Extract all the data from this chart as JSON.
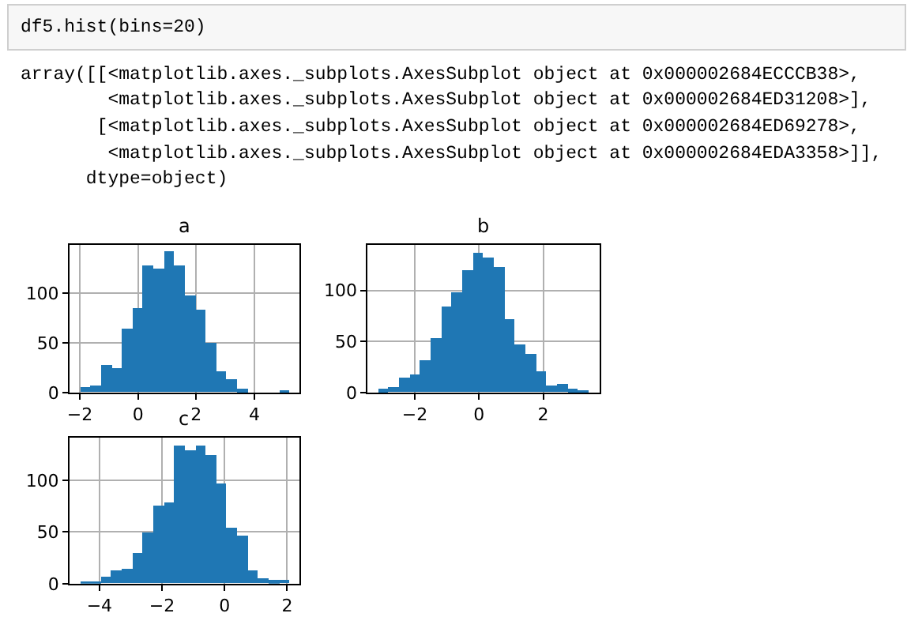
{
  "chart_data": [
    {
      "type": "histogram",
      "title": "a",
      "annotations": [
        "df5.hist(bins=20)",
        "array([[<matplotlib.axes._subplots.AxesSubplot object at 0x000002684ECCCB38>,",
        "        <matplotlib.axes._subplots.AxesSubplot object at 0x000002684ED31208>],",
        "       [<matplotlib.axes._subplots.AxesSubplot object at 0x000002684ED69278>,",
        "        <matplotlib.axes._subplots.AxesSubplot object at 0x000002684EDA3358>]],",
        "      dtype=object)"
      ],
      "bins": [
        -2.0,
        -1.64,
        -1.28,
        -0.92,
        -0.56,
        -0.2,
        0.16,
        0.52,
        0.88,
        1.24,
        1.6,
        1.96,
        2.32,
        2.68,
        3.04,
        3.4,
        3.76,
        4.12,
        4.48,
        4.84,
        5.2
      ],
      "values": [
        5,
        7,
        27,
        25,
        64,
        85,
        127,
        125,
        141,
        127,
        97,
        83,
        49,
        21,
        13,
        3,
        0,
        0,
        0,
        2
      ],
      "color": "#1f77b4",
      "xlim": [
        -2.36,
        5.56
      ],
      "ylim": [
        0,
        148
      ],
      "xticks": [
        -2,
        0,
        2,
        4
      ],
      "yticks": [
        0,
        50,
        100
      ],
      "grid": true
    },
    {
      "type": "histogram",
      "title": "b",
      "bins": [
        -3.14,
        -2.812,
        -2.484,
        -2.156,
        -1.828,
        -1.5,
        -1.172,
        -0.844,
        -0.516,
        -0.188,
        0.14,
        0.468,
        0.796,
        1.124,
        1.452,
        1.78,
        2.108,
        2.436,
        2.764,
        3.092,
        3.42
      ],
      "values": [
        3,
        5,
        14,
        18,
        31,
        53,
        84,
        97,
        119,
        137,
        132,
        123,
        72,
        47,
        38,
        20,
        6,
        8,
        3,
        2
      ],
      "color": "#1f77b4",
      "xlim": [
        -3.47,
        3.75
      ],
      "ylim": [
        0,
        144
      ],
      "xticks": [
        -2,
        0,
        2
      ],
      "yticks": [
        0,
        50,
        100
      ],
      "grid": true
    },
    {
      "type": "histogram",
      "title": "c",
      "bins": [
        -4.63,
        -4.295,
        -3.96,
        -3.625,
        -3.29,
        -2.955,
        -2.62,
        -2.285,
        -1.95,
        -1.615,
        -1.28,
        -0.945,
        -0.61,
        -0.275,
        0.06,
        0.395,
        0.73,
        1.065,
        1.4,
        1.735,
        2.07
      ],
      "values": [
        2,
        2,
        6,
        12,
        15,
        30,
        49,
        76,
        79,
        134,
        129,
        134,
        124,
        97,
        54,
        46,
        12,
        5,
        3,
        4
      ],
      "color": "#1f77b4",
      "xlim": [
        -4.96,
        2.4
      ],
      "ylim": [
        0,
        141
      ],
      "xticks": [
        -4,
        -2,
        0,
        2
      ],
      "yticks": [
        0,
        50,
        100
      ],
      "grid": true
    }
  ]
}
